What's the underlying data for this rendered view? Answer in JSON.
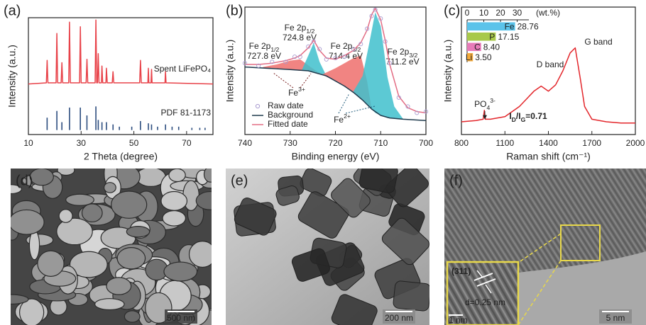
{
  "chart_data": [
    {
      "type": "line",
      "label": "(a)",
      "xlabel": "2 Theta (degree)",
      "ylabel": "Intensity (a.u.)",
      "xlim": [
        10,
        80
      ],
      "xticks": [
        10,
        30,
        50,
        70
      ],
      "ylim": [
        -4,
        100
      ],
      "series": [
        {
          "name": "Spent LiFePO₄",
          "color": "#e8434a",
          "x": [
            10,
            16.8,
            17.1,
            17.4,
            20.5,
            20.8,
            21.1,
            22.4,
            22.7,
            23,
            25.3,
            25.6,
            25.9,
            29.4,
            29.7,
            30,
            31.9,
            32.2,
            32.5,
            35.3,
            35.6,
            35.9,
            36.2,
            36.5,
            36.8,
            37.7,
            37.9,
            38.2,
            39.4,
            39.6,
            39.9,
            41.8,
            42.1,
            42.4,
            52.2,
            52.5,
            52.8,
            55.3,
            55.5,
            55.7,
            56.5,
            56.7,
            56.9,
            61.8,
            62,
            62.2,
            80
          ],
          "values": [
            41,
            42,
            62,
            42,
            42,
            86,
            42,
            42,
            60,
            42,
            42,
            96,
            42,
            42,
            92,
            42,
            42,
            63,
            42,
            42,
            98,
            42,
            42,
            68,
            42,
            42,
            57,
            42,
            42,
            55,
            42,
            42,
            52,
            42,
            42,
            62,
            42,
            42,
            55,
            42,
            42,
            54,
            42,
            42,
            52,
            42,
            41
          ]
        },
        {
          "name": "PDF 81-1173",
          "color": "#2b4c7e",
          "style": "stick",
          "x": [
            17.1,
            20.8,
            22.7,
            25.6,
            29.7,
            32.2,
            35.6,
            36.5,
            37.9,
            39.6,
            42.1,
            44.5,
            49.2,
            52.5,
            55.5,
            56.7,
            59,
            62,
            64.5,
            67,
            72,
            75,
            77
          ],
          "values": [
            11,
            17,
            7,
            20,
            20,
            13,
            21,
            9,
            7,
            7,
            5,
            3,
            3,
            8,
            6,
            5,
            3,
            5,
            3,
            3,
            2,
            2,
            2
          ]
        }
      ]
    },
    {
      "type": "line",
      "label": "(b)",
      "xlabel": "Binding energy (eV)",
      "ylabel": "Intensity (a.u.)",
      "xlim": [
        740,
        700
      ],
      "xticks": [
        740,
        730,
        720,
        710,
        700
      ],
      "ylim": [
        0,
        100
      ],
      "legend": "lower left",
      "components": [
        {
          "color": "#ef6f6c",
          "label": [
            {
              "text": "Fe 2p"
            },
            {
              "text": "1/2",
              "style": "sub"
            }
          ],
          "energy": "727.8 eV",
          "x": [
            736,
            733,
            730,
            727.8,
            725.5,
            723
          ],
          "values": [
            53,
            55,
            58,
            59,
            53,
            47
          ],
          "base": [
            52,
            52,
            51,
            50,
            50,
            47
          ]
        },
        {
          "color": "#3fbfcc",
          "label": [
            {
              "text": "Fe 2p"
            },
            {
              "text": "1/2",
              "style": "sub"
            }
          ],
          "energy": "724.8 eV",
          "x": [
            727.5,
            726,
            724.8,
            723.5,
            722
          ],
          "values": [
            50,
            62,
            72,
            57,
            46
          ],
          "base": [
            50,
            50,
            49,
            48,
            46
          ]
        },
        {
          "color": "#ef6f6c",
          "label": [
            {
              "text": "Fe 2p"
            },
            {
              "text": "3/2",
              "style": "sub"
            }
          ],
          "energy": "714.4 eV",
          "x": [
            723,
            720,
            718,
            716,
            714.4,
            713,
            712
          ],
          "values": [
            47,
            52,
            56,
            60,
            62,
            42,
            20
          ],
          "base": [
            47,
            42,
            38,
            33,
            28,
            24,
            20
          ]
        },
        {
          "color": "#3fbfcc",
          "label": [
            {
              "text": "Fe 2p"
            },
            {
              "text": "3/2",
              "style": "sub"
            }
          ],
          "energy": "711.2 eV",
          "x": [
            716,
            714,
            712.5,
            711.2,
            710,
            708.5,
            707,
            705
          ],
          "values": [
            34,
            46,
            72,
            96,
            85,
            45,
            22,
            12
          ],
          "base": [
            33,
            27,
            22,
            17,
            15,
            13,
            13,
            12
          ]
        }
      ],
      "series": [
        {
          "name": "Background",
          "color": "#1f3a4d",
          "x": [
            740,
            730,
            726,
            722,
            718,
            716,
            714,
            712,
            710,
            708,
            705,
            700
          ],
          "values": [
            53,
            51,
            50,
            46,
            38,
            33,
            27,
            20,
            15,
            13,
            12,
            11
          ]
        },
        {
          "name": "Fitted date",
          "color": "#e36d84",
          "x": [
            740,
            737,
            734,
            731,
            729,
            727.8,
            726,
            724.8,
            723.5,
            722,
            720,
            718,
            716,
            714.4,
            713,
            712,
            711.2,
            710,
            709,
            708,
            706,
            704,
            702,
            700
          ],
          "values": [
            55,
            55,
            56,
            58,
            60,
            62,
            68,
            74,
            66,
            60,
            59,
            62,
            66,
            72,
            82,
            94,
            99,
            90,
            74,
            55,
            30,
            21,
            18,
            17
          ]
        },
        {
          "name": "Raw date",
          "color": "#a99bd0",
          "marker": "circle",
          "x": [
            740,
            737,
            734,
            731,
            729,
            727.8,
            726,
            724.8,
            723.5,
            722,
            720,
            718,
            716,
            714.4,
            713,
            712,
            711.2,
            710,
            709,
            708,
            706,
            704,
            702,
            700
          ],
          "values": [
            56,
            54,
            57,
            57,
            61,
            61,
            69,
            73,
            67,
            59,
            60,
            61,
            67,
            71,
            83,
            93,
            98,
            91,
            73,
            56,
            29,
            22,
            17,
            18
          ]
        }
      ],
      "oxidation_labels": [
        [
          {
            "text": "Fe"
          },
          {
            "text": "3+",
            "style": "sup"
          }
        ],
        [
          {
            "text": "Fe"
          },
          {
            "text": "2+",
            "style": "sup"
          }
        ]
      ]
    },
    {
      "type": "line",
      "label": "(c)",
      "xlabel": "Raman shift (cm⁻¹)",
      "ylabel": "Intensity (a.u.)",
      "xlim": [
        800,
        2000
      ],
      "xticks": [
        800,
        1100,
        1400,
        1700,
        2000
      ],
      "ylim": [
        0,
        100
      ],
      "series": [
        {
          "color": "#e3262b",
          "x": [
            800,
            900,
            950,
            958,
            965,
            1000,
            1100,
            1200,
            1250,
            1300,
            1350,
            1400,
            1450,
            1500,
            1550,
            1585,
            1620,
            1650,
            1700,
            1800,
            1900,
            2000
          ],
          "values": [
            10,
            11,
            12,
            19,
            12,
            12,
            14,
            22,
            28,
            34,
            38,
            34,
            39,
            50,
            64,
            68,
            44,
            22,
            12,
            10,
            9,
            9
          ]
        }
      ],
      "annotations": [
        [
          {
            "text": "D band"
          }
        ],
        [
          {
            "text": "G band"
          }
        ],
        [
          {
            "text": "PO"
          },
          {
            "text": "4",
            "style": "sub"
          },
          {
            "text": "3-",
            "style": "sup"
          }
        ],
        [
          {
            "text": "I"
          },
          {
            "text": "D",
            "style": "sub"
          },
          {
            "text": "/I"
          },
          {
            "text": "G",
            "style": "sub"
          },
          {
            "text": "=0.71"
          }
        ]
      ]
    },
    {
      "type": "bar",
      "orientation": "horizontal",
      "xlabel": "(wt.%)",
      "xlim": [
        0,
        37
      ],
      "xticks": [
        0,
        10,
        20,
        30
      ],
      "categories": [
        "Fe",
        "P",
        "C",
        "Li"
      ],
      "values": [
        28.76,
        17.15,
        8.4,
        3.5
      ],
      "value_labels": [
        "28.76",
        "17.15",
        "8.40",
        "3.50"
      ],
      "colors": [
        "#5bc3ea",
        "#a8c94a",
        "#e77bb8",
        "#f2a93b"
      ]
    }
  ],
  "micrographs": [
    {
      "label": "(d)",
      "scale_bar": "500 nm"
    },
    {
      "label": "(e)",
      "scale_bar": "200 nm"
    },
    {
      "label": "(f)",
      "scale_bar": "5 nm",
      "inset": {
        "scale_bar": "1 nm",
        "plane": "(311)",
        "spacing": "d=0.25 nm"
      }
    }
  ]
}
